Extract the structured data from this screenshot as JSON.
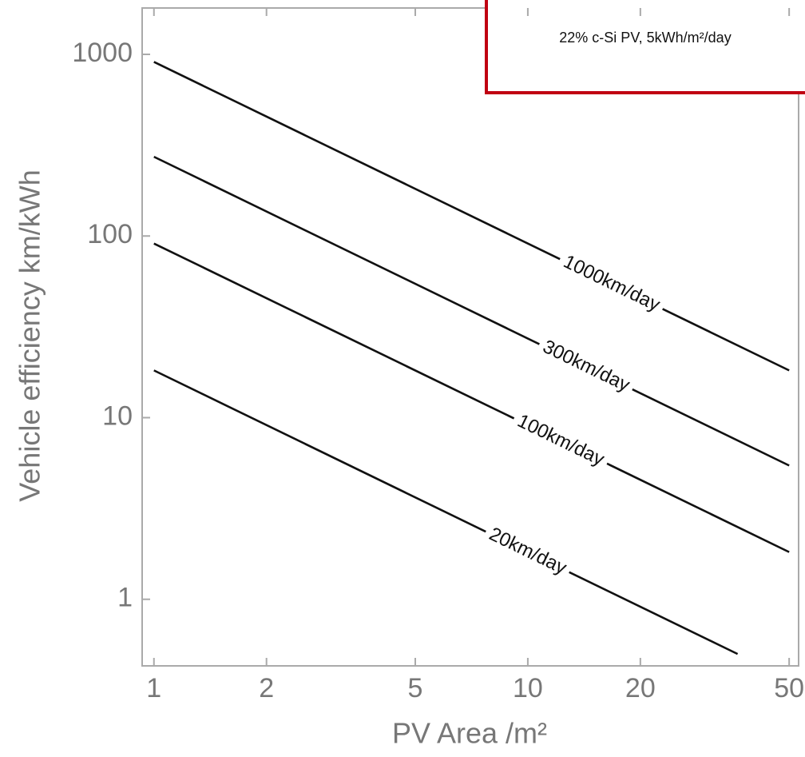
{
  "chart_data": {
    "type": "line",
    "annotation": "22% c-Si PV, 5kWh/m²/day",
    "x_label": "PV Area /m²",
    "y_label": "Vehicle efficiency km/kWh",
    "xscale": "log",
    "yscale": "log",
    "xlim": [
      0.93,
      53
    ],
    "ylim": [
      0.43,
      1800
    ],
    "xticks": [
      1,
      2,
      5,
      10,
      20,
      50
    ],
    "yticks": [
      1,
      10,
      100,
      1000
    ],
    "series": [
      {
        "name": "1000km/day",
        "color": "#111111",
        "x": [
          1,
          50
        ],
        "values": [
          909,
          18.2
        ]
      },
      {
        "name": "300km/day",
        "color": "#111111",
        "x": [
          1,
          50
        ],
        "values": [
          273,
          5.45
        ]
      },
      {
        "name": "100km/day",
        "color": "#111111",
        "x": [
          1,
          50
        ],
        "values": [
          90.9,
          1.82
        ]
      },
      {
        "name": "20km/day",
        "color": "#111111",
        "x": [
          1,
          36.4
        ],
        "values": [
          18.2,
          0.5
        ]
      }
    ]
  }
}
